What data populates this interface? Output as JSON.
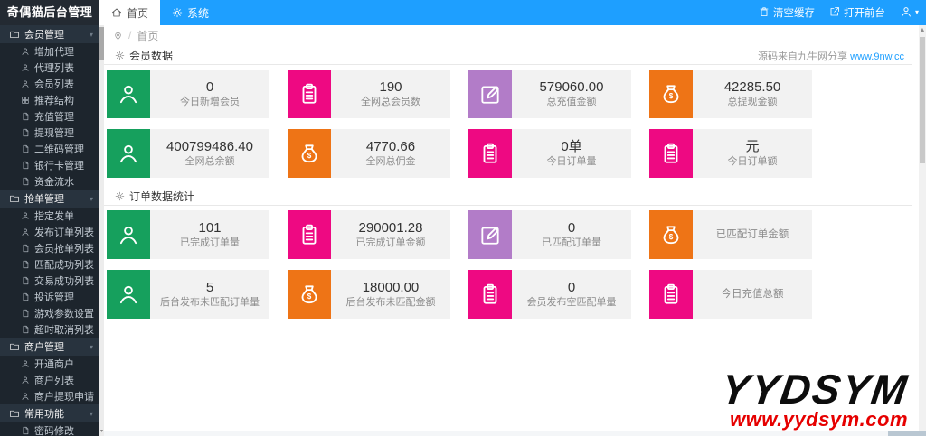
{
  "brand": {
    "title": "奇偶猫后台管理"
  },
  "topnav": {
    "tabs": [
      {
        "label": "首页",
        "icon": "home-icon",
        "active": true
      },
      {
        "label": "系统",
        "icon": "gear-icon",
        "active": false
      }
    ],
    "actions": [
      {
        "label": "清空缓存",
        "icon": "trash-icon"
      },
      {
        "label": "打开前台",
        "icon": "external-link-icon"
      }
    ],
    "user_menu": {
      "icon": "person-icon"
    }
  },
  "sidebar": {
    "sections": [
      {
        "label": "会员管理",
        "icon": "folder-icon",
        "items": [
          {
            "label": "增加代理",
            "icon": "user-icon"
          },
          {
            "label": "代理列表",
            "icon": "user-icon"
          },
          {
            "label": "会员列表",
            "icon": "user-icon"
          },
          {
            "label": "推荐结构",
            "icon": "grid-icon"
          },
          {
            "label": "充值管理",
            "icon": "file-icon"
          },
          {
            "label": "提现管理",
            "icon": "file-icon"
          },
          {
            "label": "二维码管理",
            "icon": "file-icon"
          },
          {
            "label": "银行卡管理",
            "icon": "file-icon"
          },
          {
            "label": "资金流水",
            "icon": "file-icon"
          }
        ]
      },
      {
        "label": "抢单管理",
        "icon": "folder-icon",
        "items": [
          {
            "label": "指定发单",
            "icon": "user-icon"
          },
          {
            "label": "发布订单列表",
            "icon": "user-icon"
          },
          {
            "label": "会员抢单列表",
            "icon": "file-icon"
          },
          {
            "label": "匹配成功列表",
            "icon": "file-icon"
          },
          {
            "label": "交易成功列表",
            "icon": "file-icon"
          },
          {
            "label": "投诉管理",
            "icon": "file-icon"
          },
          {
            "label": "游戏参数设置",
            "icon": "file-icon"
          },
          {
            "label": "超时取消列表",
            "icon": "file-icon"
          }
        ]
      },
      {
        "label": "商户管理",
        "icon": "folder-icon",
        "items": [
          {
            "label": "开通商户",
            "icon": "user-icon"
          },
          {
            "label": "商户列表",
            "icon": "user-icon"
          },
          {
            "label": "商户提现申请",
            "icon": "user-icon"
          }
        ]
      },
      {
        "label": "常用功能",
        "icon": "folder-icon",
        "items": [
          {
            "label": "密码修改",
            "icon": "file-icon"
          }
        ]
      }
    ]
  },
  "breadcrumb": {
    "icon": "pin-icon",
    "separator": "/",
    "current": "首页"
  },
  "panels": [
    {
      "title": "会员数据",
      "icon": "gear-icon",
      "note": {
        "text": "源码来自九牛网分享 ",
        "link": "www.9nw.cc"
      },
      "rows": [
        [
          {
            "icon": "user-icon",
            "color": "green",
            "value": "0",
            "label": "今日新增会员"
          },
          {
            "icon": "clipboard-icon",
            "color": "magenta",
            "value": "190",
            "label": "全网总会员数"
          },
          {
            "icon": "edit-icon",
            "color": "purple",
            "value": "579060.00",
            "label": "总充值金额"
          },
          {
            "icon": "moneybag-icon",
            "color": "orange",
            "value": "42285.50",
            "label": "总提现金额"
          }
        ],
        [
          {
            "icon": "user-icon",
            "color": "green",
            "value": "400799486.40",
            "label": "全网总余额"
          },
          {
            "icon": "moneybag-icon",
            "color": "orange",
            "value": "4770.66",
            "label": "全网总佣金"
          },
          {
            "icon": "clipboard-icon",
            "color": "magenta",
            "value": "0单",
            "label": "今日订单量"
          },
          {
            "icon": "clipboard-icon",
            "color": "magenta",
            "value": "元",
            "label": "今日订单额"
          }
        ]
      ]
    },
    {
      "title": "订单数据统计",
      "icon": "gear-icon",
      "rows": [
        [
          {
            "icon": "user-icon",
            "color": "green",
            "value": "101",
            "label": "已完成订单量"
          },
          {
            "icon": "clipboard-icon",
            "color": "magenta",
            "value": "290001.28",
            "label": "已完成订单金额"
          },
          {
            "icon": "edit-icon",
            "color": "purple",
            "value": "0",
            "label": "已匹配订单量"
          },
          {
            "icon": "moneybag-icon",
            "color": "orange",
            "value": "",
            "label": "已匹配订单金额"
          }
        ],
        [
          {
            "icon": "user-icon",
            "color": "green",
            "value": "5",
            "label": "后台发布未匹配订单量"
          },
          {
            "icon": "moneybag-icon",
            "color": "orange",
            "value": "18000.00",
            "label": "后台发布未匹配金额"
          },
          {
            "icon": "clipboard-icon",
            "color": "magenta",
            "value": "0",
            "label": "会员发布空匹配单量"
          },
          {
            "icon": "clipboard-icon",
            "color": "magenta",
            "value": "",
            "label": "今日充值总额"
          }
        ]
      ]
    }
  ],
  "colors": {
    "header_blue": "#1E9FFF",
    "sidebar_dark": "#28333E",
    "green": "#16A05D",
    "magenta": "#EE0982",
    "purple": "#B27CC8",
    "orange": "#EE7416",
    "card_bg": "#F2F2F2"
  },
  "watermark": {
    "title": "YYDSYM",
    "url": "www.yydsym.com",
    "url_color": "#e60000"
  }
}
